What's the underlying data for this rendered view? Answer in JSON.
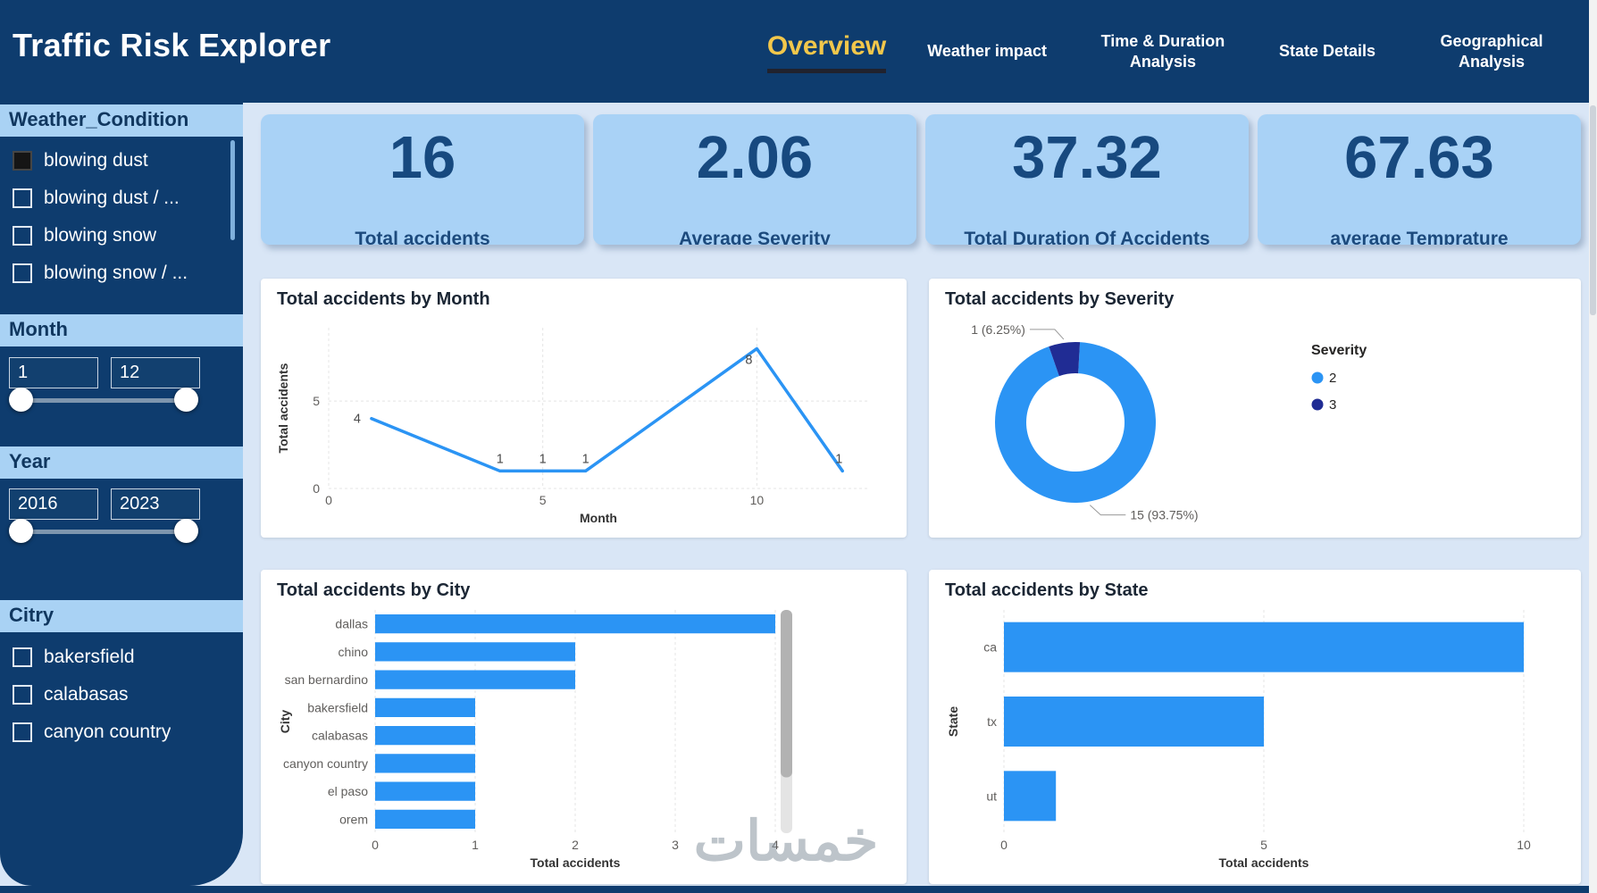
{
  "header": {
    "title": "Traffic Risk Explorer",
    "tabs": [
      {
        "label": "Overview",
        "active": true
      },
      {
        "label": "Weather impact",
        "active": false
      },
      {
        "label": "Time & Duration Analysis",
        "active": false
      },
      {
        "label": "State Details",
        "active": false
      },
      {
        "label": "Geographical Analysis",
        "active": false
      }
    ]
  },
  "sidebar": {
    "weather": {
      "title": "Weather_Condition",
      "items": [
        {
          "label": "blowing dust",
          "checked": true
        },
        {
          "label": "blowing dust / ...",
          "checked": false
        },
        {
          "label": "blowing snow",
          "checked": false
        },
        {
          "label": "blowing snow / ...",
          "checked": false
        }
      ]
    },
    "month": {
      "title": "Month",
      "min": "1",
      "max": "12"
    },
    "year": {
      "title": "Year",
      "min": "2016",
      "max": "2023"
    },
    "city": {
      "title": "Citry",
      "items": [
        {
          "label": "bakersfield",
          "checked": false
        },
        {
          "label": "calabasas",
          "checked": false
        },
        {
          "label": "canyon country",
          "checked": false
        }
      ]
    }
  },
  "kpis": [
    {
      "value": "16",
      "label": "Total accidents"
    },
    {
      "value": "2.06",
      "label": "Average Severity"
    },
    {
      "value": "37.32",
      "label": "Total Duration Of Accidents"
    },
    {
      "value": "67.63",
      "label": "average Temprature"
    }
  ],
  "chart_data": [
    {
      "type": "line",
      "title": "Total accidents by Month",
      "xlabel": "Month",
      "ylabel": "Total accidents",
      "x": [
        1,
        4,
        5,
        6,
        10,
        12
      ],
      "y": [
        4,
        1,
        1,
        1,
        8,
        1
      ],
      "point_labels": [
        "4",
        "1",
        "1",
        "1",
        "8",
        "1"
      ],
      "xticks": [
        0,
        5,
        10
      ],
      "yticks": [
        0,
        5
      ],
      "xlim": [
        0,
        12.6
      ],
      "ylim": [
        0,
        9.2
      ],
      "color": "#2b94f4",
      "label_dx": [
        -16,
        0,
        0,
        0,
        -9,
        -4
      ],
      "label_dy": [
        5,
        -9,
        -9,
        -9,
        17,
        -9
      ]
    },
    {
      "type": "donut",
      "title": "Total accidents by Severity",
      "legend_title": "Severity",
      "legend_position": "right",
      "slices": [
        {
          "name": "2",
          "value": 15,
          "pct": 93.75,
          "label": "15 (93.75%)",
          "color": "#2b94f4"
        },
        {
          "name": "3",
          "value": 1,
          "pct": 6.25,
          "label": "1 (6.25%)",
          "color": "#202c94"
        }
      ]
    },
    {
      "type": "bar",
      "title": "Total accidents by City",
      "xlabel": "Total accidents",
      "ylabel": "City",
      "categories": [
        "dallas",
        "chino",
        "san bernardino",
        "bakersfield",
        "calabasas",
        "canyon country",
        "el paso",
        "orem"
      ],
      "values": [
        4,
        2,
        2,
        1,
        1,
        1,
        1,
        1
      ],
      "xticks": [
        0,
        1,
        2,
        3,
        4
      ],
      "xlim": [
        0,
        4
      ],
      "color": "#2b94f4",
      "scrollbar": true
    },
    {
      "type": "bar",
      "title": "Total accidents by State",
      "xlabel": "Total accidents",
      "ylabel": "State",
      "categories": [
        "ca",
        "tx",
        "ut"
      ],
      "values": [
        10,
        5,
        1
      ],
      "xticks": [
        0,
        5,
        10
      ],
      "xlim": [
        0,
        10
      ],
      "color": "#2b94f4",
      "scrollbar": false
    }
  ],
  "watermark": "خمسات",
  "colors": {
    "navy": "#0e3c6e",
    "accent_blue": "#2b94f4",
    "donut_dark": "#202c94",
    "light_blue_card": "#a9d2f6",
    "page_bg": "#d9e6f6",
    "active_tab_gold": "#f2c74b"
  }
}
